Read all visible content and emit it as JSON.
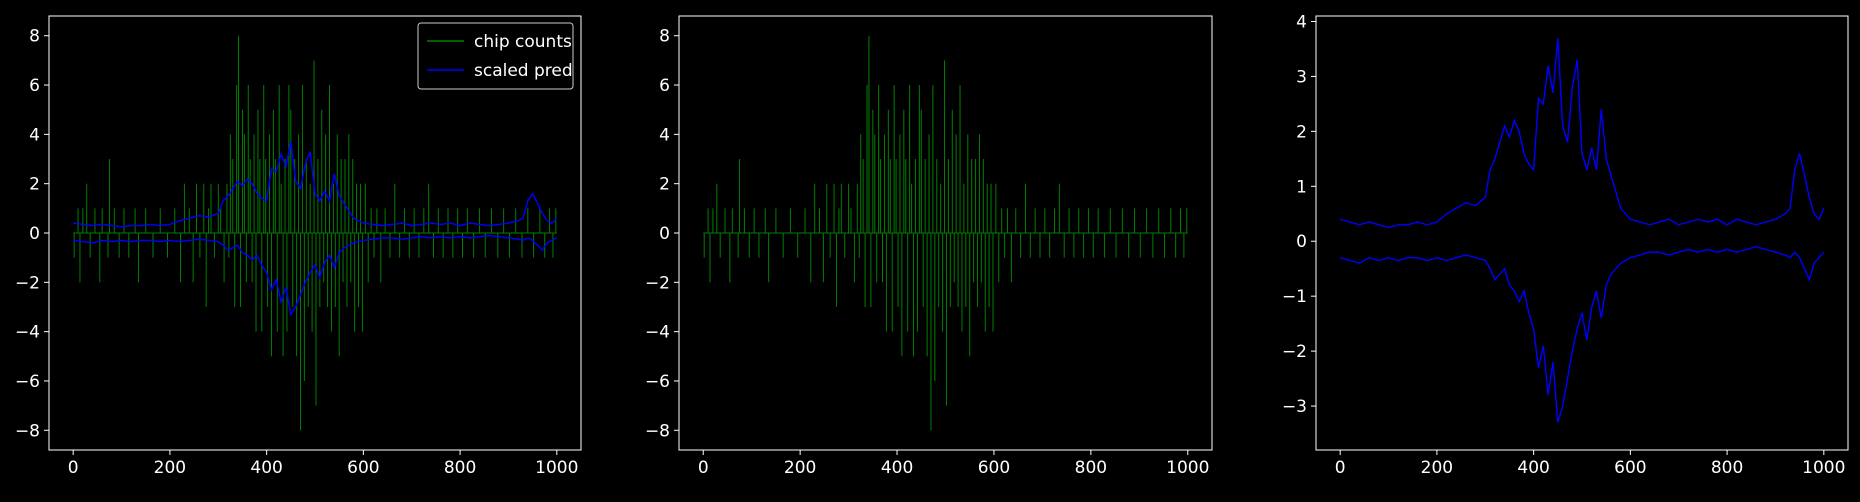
{
  "chart_data": [
    {
      "type": "line",
      "title": "",
      "xlabel": "",
      "ylabel": "",
      "xlim": [
        -50,
        1050
      ],
      "ylim": [
        -8.8,
        8.8
      ],
      "xticks": [
        0,
        200,
        400,
        600,
        800,
        1000
      ],
      "yticks": [
        -8,
        -6,
        -4,
        -2,
        0,
        2,
        4,
        6,
        8
      ],
      "legend": {
        "placement": "top-right"
      },
      "series": [
        {
          "name": "chip counts",
          "style": "vlines-from-zero",
          "color": "#008000",
          "source": "chip_counts"
        },
        {
          "name": "scaled pred",
          "style": "envelope-lines",
          "color": "#0000ff",
          "source": "scaled_pred"
        }
      ]
    },
    {
      "type": "line",
      "title": "",
      "xlabel": "",
      "ylabel": "",
      "xlim": [
        -50,
        1050
      ],
      "ylim": [
        -8.8,
        8.8
      ],
      "xticks": [
        0,
        200,
        400,
        600,
        800,
        1000
      ],
      "yticks": [
        -8,
        -6,
        -4,
        -2,
        0,
        2,
        4,
        6,
        8
      ],
      "series": [
        {
          "name": "",
          "style": "vlines-from-zero",
          "color": "#008000",
          "source": "chip_counts"
        }
      ]
    },
    {
      "type": "line",
      "title": "",
      "xlabel": "",
      "ylabel": "",
      "xlim": [
        -50,
        1050
      ],
      "ylim": [
        -3.8,
        4.1
      ],
      "xticks": [
        0,
        200,
        400,
        600,
        800,
        1000
      ],
      "yticks": [
        -3,
        -2,
        -1,
        0,
        1,
        2,
        3,
        4
      ],
      "series": [
        {
          "name": "",
          "style": "envelope-lines",
          "color": "#0000ff",
          "source": "scaled_pred"
        }
      ]
    }
  ],
  "shared_series": {
    "chip_counts": {
      "x_range": [
        0,
        1000
      ],
      "nonzero_points": [
        [
          2,
          -1
        ],
        [
          10,
          1
        ],
        [
          14,
          -2
        ],
        [
          20,
          1
        ],
        [
          28,
          2
        ],
        [
          35,
          -1
        ],
        [
          45,
          1
        ],
        [
          55,
          -2
        ],
        [
          60,
          1
        ],
        [
          72,
          -1
        ],
        [
          75,
          3
        ],
        [
          85,
          1
        ],
        [
          95,
          -1
        ],
        [
          105,
          1
        ],
        [
          115,
          -1
        ],
        [
          128,
          1
        ],
        [
          135,
          -2
        ],
        [
          150,
          1
        ],
        [
          165,
          -1
        ],
        [
          180,
          1
        ],
        [
          195,
          -1
        ],
        [
          210,
          1
        ],
        [
          222,
          -2
        ],
        [
          230,
          2
        ],
        [
          240,
          1
        ],
        [
          248,
          -2
        ],
        [
          255,
          2
        ],
        [
          262,
          -1
        ],
        [
          270,
          2
        ],
        [
          275,
          -3
        ],
        [
          280,
          1
        ],
        [
          285,
          2
        ],
        [
          292,
          -1
        ],
        [
          300,
          2
        ],
        [
          305,
          1
        ],
        [
          312,
          -2
        ],
        [
          318,
          2
        ],
        [
          322,
          -1
        ],
        [
          325,
          4
        ],
        [
          330,
          3
        ],
        [
          334,
          -3
        ],
        [
          338,
          6
        ],
        [
          342,
          8
        ],
        [
          346,
          -3
        ],
        [
          350,
          5
        ],
        [
          354,
          4
        ],
        [
          358,
          -2
        ],
        [
          362,
          6
        ],
        [
          366,
          3
        ],
        [
          370,
          -2
        ],
        [
          374,
          4
        ],
        [
          378,
          -4
        ],
        [
          382,
          5
        ],
        [
          386,
          3
        ],
        [
          390,
          -4
        ],
        [
          394,
          6
        ],
        [
          398,
          3
        ],
        [
          402,
          -3
        ],
        [
          406,
          4
        ],
        [
          410,
          -5
        ],
        [
          414,
          5
        ],
        [
          418,
          3
        ],
        [
          422,
          -4
        ],
        [
          426,
          6
        ],
        [
          430,
          2
        ],
        [
          434,
          -5
        ],
        [
          438,
          3
        ],
        [
          442,
          -4
        ],
        [
          446,
          6
        ],
        [
          450,
          5
        ],
        [
          454,
          -3
        ],
        [
          458,
          3
        ],
        [
          462,
          -5
        ],
        [
          466,
          4
        ],
        [
          470,
          -8
        ],
        [
          474,
          6
        ],
        [
          478,
          -6
        ],
        [
          482,
          3
        ],
        [
          486,
          -3
        ],
        [
          490,
          2
        ],
        [
          494,
          -4
        ],
        [
          498,
          7
        ],
        [
          502,
          -7
        ],
        [
          506,
          3
        ],
        [
          510,
          -3
        ],
        [
          514,
          5
        ],
        [
          518,
          -2
        ],
        [
          522,
          4
        ],
        [
          526,
          -3
        ],
        [
          530,
          6
        ],
        [
          534,
          -4
        ],
        [
          538,
          2
        ],
        [
          542,
          -3
        ],
        [
          546,
          4
        ],
        [
          550,
          -5
        ],
        [
          554,
          3
        ],
        [
          558,
          -2
        ],
        [
          562,
          3
        ],
        [
          566,
          -3
        ],
        [
          570,
          4
        ],
        [
          574,
          -2
        ],
        [
          578,
          3
        ],
        [
          582,
          -4
        ],
        [
          586,
          2
        ],
        [
          590,
          -3
        ],
        [
          594,
          2
        ],
        [
          598,
          -4
        ],
        [
          604,
          2
        ],
        [
          610,
          -2
        ],
        [
          616,
          1
        ],
        [
          622,
          -1
        ],
        [
          628,
          1
        ],
        [
          636,
          -2
        ],
        [
          645,
          1
        ],
        [
          655,
          -1
        ],
        [
          665,
          2
        ],
        [
          675,
          -1
        ],
        [
          685,
          1
        ],
        [
          695,
          -1
        ],
        [
          705,
          1
        ],
        [
          715,
          -1
        ],
        [
          725,
          1
        ],
        [
          735,
          2
        ],
        [
          745,
          -1
        ],
        [
          755,
          1
        ],
        [
          765,
          -1
        ],
        [
          775,
          1
        ],
        [
          785,
          -1
        ],
        [
          795,
          1
        ],
        [
          805,
          -1
        ],
        [
          815,
          1
        ],
        [
          828,
          -1
        ],
        [
          840,
          1
        ],
        [
          852,
          -1
        ],
        [
          865,
          1
        ],
        [
          878,
          -1
        ],
        [
          890,
          1
        ],
        [
          902,
          -1
        ],
        [
          915,
          1
        ],
        [
          928,
          -1
        ],
        [
          940,
          1
        ],
        [
          952,
          -1
        ],
        [
          965,
          1
        ],
        [
          975,
          -1
        ],
        [
          985,
          1
        ],
        [
          992,
          -1
        ],
        [
          998,
          1
        ]
      ]
    },
    "scaled_pred": {
      "x": [
        0,
        20,
        40,
        60,
        80,
        100,
        120,
        140,
        160,
        180,
        200,
        220,
        240,
        260,
        280,
        300,
        310,
        320,
        330,
        340,
        350,
        360,
        370,
        380,
        390,
        400,
        410,
        420,
        430,
        440,
        450,
        460,
        470,
        480,
        490,
        500,
        510,
        520,
        530,
        540,
        550,
        560,
        570,
        580,
        590,
        600,
        620,
        640,
        660,
        680,
        700,
        720,
        740,
        760,
        780,
        800,
        820,
        840,
        860,
        880,
        900,
        920,
        930,
        940,
        950,
        960,
        970,
        980,
        990,
        1000
      ],
      "upper": [
        0.4,
        0.35,
        0.3,
        0.35,
        0.3,
        0.25,
        0.3,
        0.3,
        0.35,
        0.3,
        0.35,
        0.5,
        0.6,
        0.7,
        0.65,
        0.8,
        1.3,
        1.5,
        1.8,
        2.1,
        1.9,
        2.2,
        2.0,
        1.6,
        1.4,
        1.3,
        2.6,
        2.5,
        3.2,
        2.7,
        3.7,
        2.1,
        1.8,
        2.8,
        3.3,
        1.6,
        1.3,
        1.7,
        1.3,
        2.4,
        1.5,
        1.2,
        0.9,
        0.6,
        0.5,
        0.4,
        0.35,
        0.3,
        0.35,
        0.4,
        0.3,
        0.35,
        0.4,
        0.35,
        0.4,
        0.3,
        0.4,
        0.35,
        0.3,
        0.35,
        0.4,
        0.5,
        0.6,
        1.3,
        1.6,
        1.2,
        0.8,
        0.5,
        0.4,
        0.6
      ],
      "lower": [
        -0.3,
        -0.35,
        -0.4,
        -0.3,
        -0.35,
        -0.3,
        -0.35,
        -0.3,
        -0.3,
        -0.35,
        -0.3,
        -0.35,
        -0.3,
        -0.25,
        -0.3,
        -0.35,
        -0.5,
        -0.7,
        -0.6,
        -0.5,
        -0.8,
        -0.9,
        -1.1,
        -0.9,
        -1.3,
        -1.6,
        -2.3,
        -1.9,
        -2.8,
        -2.2,
        -3.3,
        -3.0,
        -2.5,
        -2.0,
        -1.6,
        -1.3,
        -1.8,
        -1.2,
        -0.9,
        -1.4,
        -0.8,
        -0.6,
        -0.5,
        -0.4,
        -0.35,
        -0.3,
        -0.25,
        -0.2,
        -0.2,
        -0.25,
        -0.2,
        -0.15,
        -0.2,
        -0.15,
        -0.2,
        -0.15,
        -0.2,
        -0.15,
        -0.1,
        -0.15,
        -0.2,
        -0.25,
        -0.3,
        -0.2,
        -0.3,
        -0.5,
        -0.7,
        -0.4,
        -0.3,
        -0.2
      ]
    }
  }
}
